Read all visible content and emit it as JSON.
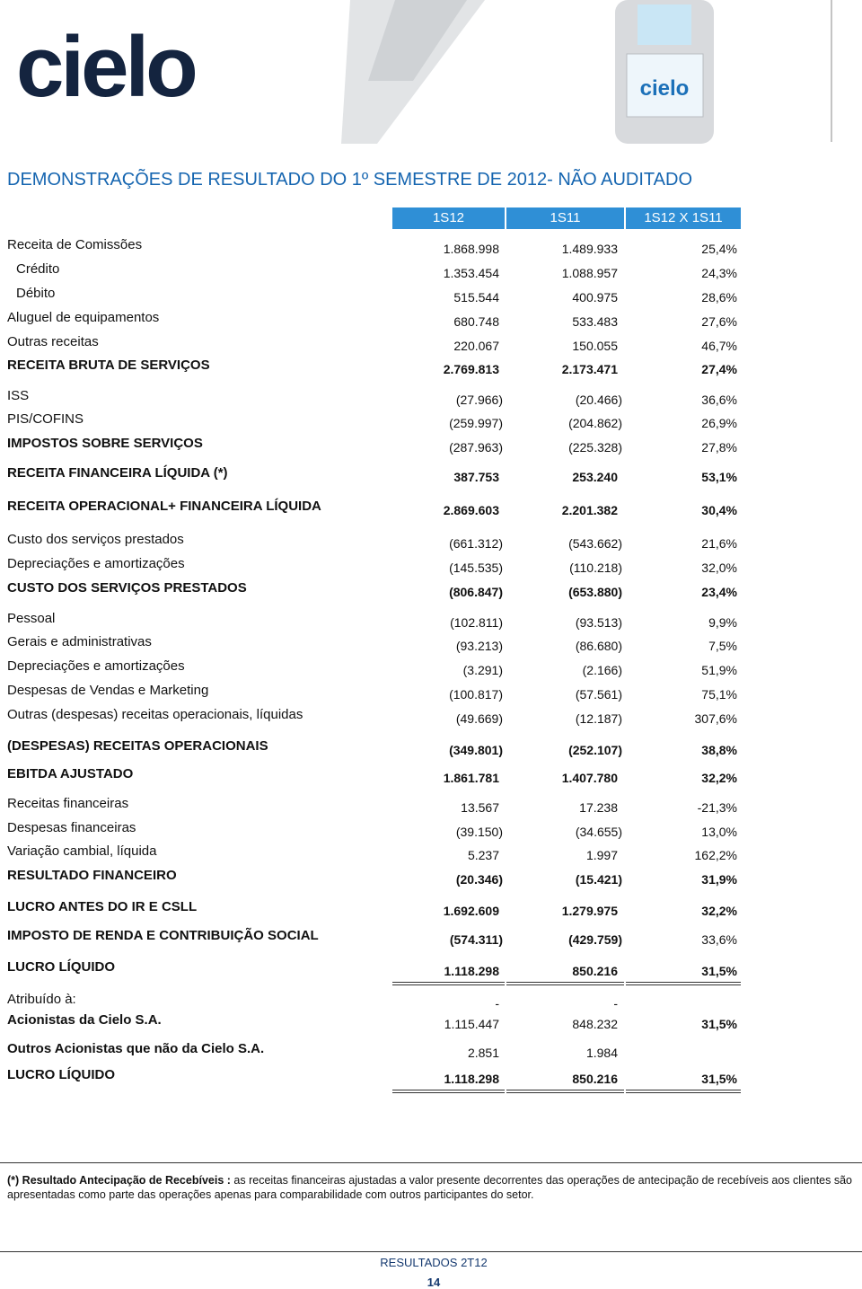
{
  "header": {
    "logo": "cielo"
  },
  "title": "DEMONSTRAÇÕES DE RESULTADO DO 1º SEMESTRE DE 2012- NÃO AUDITADO",
  "table": {
    "columns": [
      "1S12",
      "1S11",
      "1S12 X 1S11"
    ],
    "rows": [
      {
        "label": "Receita de Comissões",
        "s12": "1.868.998",
        "s11": "1.489.933",
        "var": "25,4%"
      },
      {
        "label": "Crédito",
        "s12": "1.353.454",
        "s11": "1.088.957",
        "var": "24,3%"
      },
      {
        "label": "Débito",
        "s12": "515.544",
        "s11": "400.975",
        "var": "28,6%"
      },
      {
        "label": "Aluguel de equipamentos",
        "s12": "680.748",
        "s11": "533.483",
        "var": "27,6%"
      },
      {
        "label": "Outras receitas",
        "s12": "220.067",
        "s11": "150.055",
        "var": "46,7%"
      },
      {
        "label": "RECEITA BRUTA DE SERVIÇOS",
        "s12": "2.769.813",
        "s11": "2.173.471",
        "var": "27,4%"
      },
      {
        "label": "ISS",
        "s12": "(27.966)",
        "s11": "(20.466)",
        "var": "36,6%"
      },
      {
        "label": "PIS/COFINS",
        "s12": "(259.997)",
        "s11": "(204.862)",
        "var": "26,9%"
      },
      {
        "label": "IMPOSTOS SOBRE SERVIÇOS",
        "s12": "(287.963)",
        "s11": "(225.328)",
        "var": "27,8%"
      },
      {
        "label": "RECEITA FINANCEIRA LÍQUIDA (*)",
        "s12": "387.753",
        "s11": "253.240",
        "var": "53,1%"
      },
      {
        "label": "RECEITA OPERACIONAL+ FINANCEIRA LÍQUIDA",
        "s12": "2.869.603",
        "s11": "2.201.382",
        "var": "30,4%"
      },
      {
        "label": "Custo dos serviços prestados",
        "s12": "(661.312)",
        "s11": "(543.662)",
        "var": "21,6%"
      },
      {
        "label": "Depreciações e amortizações",
        "s12": "(145.535)",
        "s11": "(110.218)",
        "var": "32,0%"
      },
      {
        "label": "CUSTO DOS SERVIÇOS PRESTADOS",
        "s12": "(806.847)",
        "s11": "(653.880)",
        "var": "23,4%"
      },
      {
        "label": "Pessoal",
        "s12": "(102.811)",
        "s11": "(93.513)",
        "var": "9,9%"
      },
      {
        "label": "Gerais e administrativas",
        "s12": "(93.213)",
        "s11": "(86.680)",
        "var": "7,5%"
      },
      {
        "label": "Depreciações e amortizações",
        "s12": "(3.291)",
        "s11": "(2.166)",
        "var": "51,9%"
      },
      {
        "label": "Despesas de Vendas e Marketing",
        "s12": "(100.817)",
        "s11": "(57.561)",
        "var": "75,1%"
      },
      {
        "label": "Outras (despesas) receitas operacionais, líquidas",
        "s12": "(49.669)",
        "s11": "(12.187)",
        "var": "307,6%"
      },
      {
        "label": "(DESPESAS) RECEITAS OPERACIONAIS",
        "s12": "(349.801)",
        "s11": "(252.107)",
        "var": "38,8%"
      },
      {
        "label": "EBITDA AJUSTADO",
        "s12": "1.861.781",
        "s11": "1.407.780",
        "var": "32,2%"
      },
      {
        "label": "Receitas financeiras",
        "s12": "13.567",
        "s11": "17.238",
        "var": "-21,3%"
      },
      {
        "label": "Despesas financeiras",
        "s12": "(39.150)",
        "s11": "(34.655)",
        "var": "13,0%"
      },
      {
        "label": "Variação cambial, líquida",
        "s12": "5.237",
        "s11": "1.997",
        "var": "162,2%"
      },
      {
        "label": "RESULTADO FINANCEIRO",
        "s12": "(20.346)",
        "s11": "(15.421)",
        "var": "31,9%"
      },
      {
        "label": "LUCRO ANTES DO IR E CSLL",
        "s12": "1.692.609",
        "s11": "1.279.975",
        "var": "32,2%"
      },
      {
        "label": "IMPOSTO DE RENDA E CONTRIBUIÇÃO SOCIAL",
        "s12": "(574.311)",
        "s11": "(429.759)",
        "var": "33,6%"
      },
      {
        "label": "LUCRO LÍQUIDO",
        "s12": "1.118.298",
        "s11": "850.216",
        "var": "31,5%"
      },
      {
        "label": "Atribuído à:",
        "s12": "-",
        "s11": "-"
      },
      {
        "label": "Acionistas da Cielo S.A.",
        "s12": "1.115.447",
        "s11": "848.232",
        "var": "31,5%"
      },
      {
        "label": "Outros Acionistas que não da Cielo S.A.",
        "s12": "2.851",
        "s11": "1.984"
      },
      {
        "label": "LUCRO LÍQUIDO",
        "s12": "1.118.298",
        "s11": "850.216",
        "var": "31,5%"
      }
    ]
  },
  "footnote": {
    "lead": "(*) Resultado Antecipação de Recebíveis :",
    "text": "as receitas financeiras ajustadas a valor presente decorrentes das operações de antecipação de recebíveis aos clientes são apresentadas como parte das operações apenas para comparabilidade com outros participantes do setor."
  },
  "footer": {
    "report": "RESULTADOS 2T12",
    "page": "14"
  }
}
